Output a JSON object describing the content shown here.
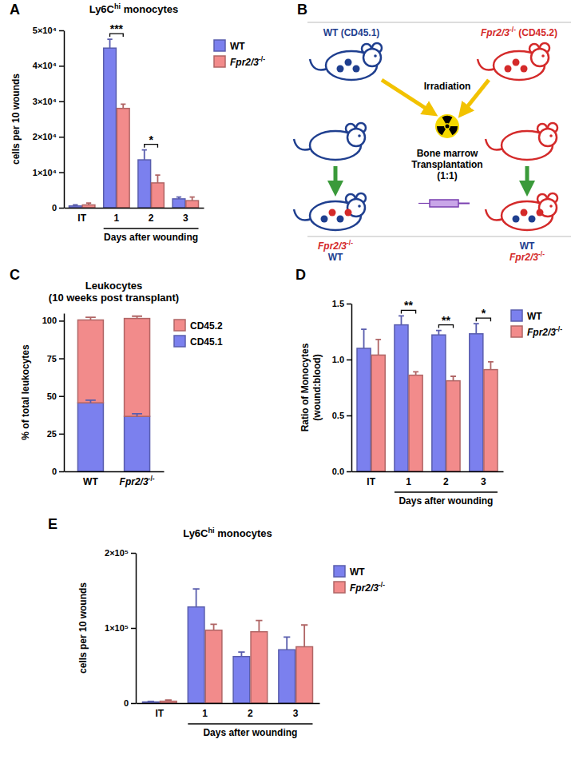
{
  "chart_data": [
    {
      "panel": "A",
      "type": "bar",
      "title": [
        "Ly6Chi monocytes"
      ],
      "y_label": [
        "cells per 10 wounds"
      ],
      "x_label": "Days after wounding",
      "categories": [
        "IT",
        "1",
        "2",
        "3"
      ],
      "series": [
        {
          "name": "WT",
          "color": "#7b80ee",
          "values": [
            500,
            45000,
            13500,
            2500
          ],
          "errors": [
            300,
            2500,
            2800,
            500
          ]
        },
        {
          "name": "Fpr2/3-/-",
          "color": "#f28b8b",
          "values": [
            800,
            28000,
            7000,
            2000
          ],
          "errors": [
            500,
            1200,
            2200,
            1000
          ]
        }
      ],
      "ylim": [
        0,
        50000
      ],
      "yticks": [
        0,
        {
          "value": 10000,
          "label": "1×10⁴"
        },
        {
          "value": 20000,
          "label": "2×10⁴"
        },
        {
          "value": 30000,
          "label": "3×10⁴"
        },
        {
          "value": 40000,
          "label": "4×10⁴"
        },
        {
          "value": 50000,
          "label": "5×10⁴"
        }
      ],
      "legend": "right",
      "annotations": [
        {
          "text": "***",
          "category": "1"
        },
        {
          "text": "*",
          "category": "2"
        }
      ]
    },
    {
      "panel": "C",
      "type": "bar",
      "stacked": true,
      "title": [
        "Leukocytes",
        "(10 weeks post transplant)"
      ],
      "y_label": [
        "% of total leukocytes"
      ],
      "categories": [
        "WT",
        "Fpr2/3-/-"
      ],
      "series": [
        {
          "name": "CD45.1",
          "color": "#7b80ee",
          "values": [
            45.5,
            36.5
          ],
          "errors": [
            1.8,
            1.8
          ]
        },
        {
          "name": "CD45.2",
          "color": "#f28b8b",
          "values": [
            55,
            65
          ],
          "errors": [
            1.8,
            1.5
          ]
        }
      ],
      "ylim": [
        0,
        105
      ],
      "yticks": [
        0,
        25,
        50,
        75,
        100
      ],
      "legend": "right"
    },
    {
      "panel": "D",
      "type": "bar",
      "y_label": [
        "Ratio of Monocytes",
        "(wound:blood)"
      ],
      "x_label": "Days after wounding",
      "categories": [
        "IT",
        "1",
        "2",
        "3"
      ],
      "series": [
        {
          "name": "WT",
          "color": "#7b80ee",
          "values": [
            1.1,
            1.31,
            1.22,
            1.23
          ],
          "errors": [
            0.17,
            0.08,
            0.04,
            0.09
          ]
        },
        {
          "name": "Fpr2/3-/-",
          "color": "#f28b8b",
          "values": [
            1.04,
            0.86,
            0.81,
            0.91
          ],
          "errors": [
            0.14,
            0.03,
            0.04,
            0.07
          ]
        }
      ],
      "ylim": [
        0,
        1.5
      ],
      "yticks": [
        {
          "value": 0,
          "label": "0.0"
        },
        {
          "value": 0.5,
          "label": "0.5"
        },
        {
          "value": 1,
          "label": "1.0"
        },
        {
          "value": 1.5,
          "label": "1.5"
        }
      ],
      "legend": "right",
      "annotations": [
        {
          "text": "**",
          "category": "1"
        },
        {
          "text": "**",
          "category": "2"
        },
        {
          "text": "*",
          "category": "3"
        }
      ]
    },
    {
      "panel": "E",
      "type": "bar",
      "title": [
        "Ly6Chi monocytes"
      ],
      "y_label": [
        "cells per 10 wounds"
      ],
      "x_label": "Days after wounding",
      "categories": [
        "IT",
        "1",
        "2",
        "3"
      ],
      "series": [
        {
          "name": "WT",
          "color": "#7b80ee",
          "values": [
            1500,
            128000,
            62000,
            71000
          ],
          "errors": [
            800,
            24000,
            6000,
            17000
          ]
        },
        {
          "name": "Fpr2/3-/-",
          "color": "#f28b8b",
          "values": [
            2500,
            97000,
            95000,
            75000
          ],
          "errors": [
            1500,
            8000,
            15000,
            29000
          ]
        }
      ],
      "ylim": [
        0,
        200000
      ],
      "yticks": [
        0,
        {
          "value": 100000,
          "label": "1×10⁵"
        },
        {
          "value": 200000,
          "label": "2×10⁵"
        }
      ],
      "legend": "right"
    }
  ],
  "diagram": {
    "panel": "B",
    "donors": [
      {
        "label": "WT (CD45.1)",
        "color": "#1f3f8f"
      },
      {
        "label": "Fpr2/3-/- (CD45.2)",
        "color": "#d42a2a"
      }
    ],
    "step": "Irradiation",
    "transplant": [
      "Bone marrow",
      "Transplantation",
      "(1:1)"
    ],
    "recipients": [
      {
        "color": "#1f3f8f",
        "labels": [
          {
            "text": "Fpr2/3-/-",
            "color": "#d42a2a"
          },
          {
            "text": "WT",
            "color": "#1f3f8f"
          }
        ]
      },
      {
        "color": "#d42a2a",
        "labels": [
          {
            "text": "WT",
            "color": "#1f3f8f"
          },
          {
            "text": "Fpr2/3-/-",
            "color": "#d42a2a"
          }
        ]
      }
    ]
  }
}
